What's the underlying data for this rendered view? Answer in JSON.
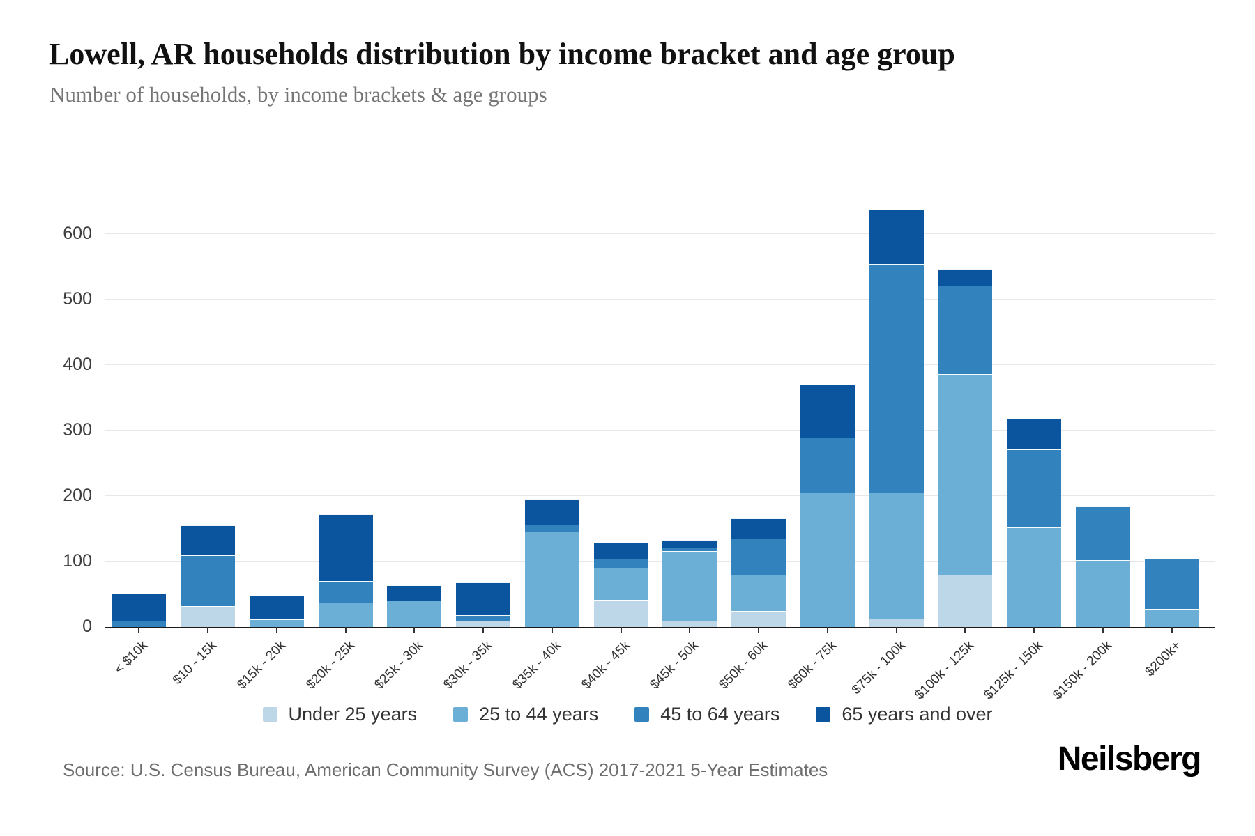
{
  "header": {
    "title": "Lowell, AR households distribution by income bracket and age group",
    "subtitle": "Number of households, by income brackets & age groups"
  },
  "footer": {
    "source": "Source: U.S. Census Bureau, American Community Survey (ACS) 2017-2021 5-Year Estimates",
    "brand": "Neilsberg"
  },
  "chart_data": {
    "type": "bar",
    "stacked": true,
    "title": "Lowell, AR households distribution by income bracket and age group",
    "subtitle": "Number of households, by income brackets & age groups",
    "xlabel": "",
    "ylabel": "",
    "ylim": [
      0,
      660
    ],
    "yticks": [
      0,
      100,
      200,
      300,
      400,
      500,
      600
    ],
    "grid": true,
    "legend_position": "bottom",
    "categories": [
      "< $10k",
      "$10 - 15k",
      "$15k - 20k",
      "$20k - 25k",
      "$25k - 30k",
      "$30k - 35k",
      "$35k - 40k",
      "$40k - 45k",
      "$45k - 50k",
      "$50k - 60k",
      "$60k - 75k",
      "$75k - 100k",
      "$100k - 125k",
      "$125k - 150k",
      "$150k - 200k",
      "$200k+"
    ],
    "series": [
      {
        "name": "Under 25 years",
        "color": "#bdd7e9",
        "values": [
          0,
          32,
          0,
          0,
          0,
          10,
          0,
          42,
          10,
          24,
          0,
          13,
          80,
          0,
          0,
          0
        ]
      },
      {
        "name": "25 to 44 years",
        "color": "#6baed6",
        "values": [
          0,
          0,
          12,
          37,
          41,
          0,
          146,
          48,
          106,
          56,
          205,
          192,
          306,
          152,
          102,
          28
        ]
      },
      {
        "name": "45 to 64 years",
        "color": "#3182bd",
        "values": [
          10,
          78,
          0,
          33,
          0,
          8,
          11,
          14,
          5,
          55,
          85,
          350,
          136,
          120,
          82,
          76
        ]
      },
      {
        "name": "65 years and over",
        "color": "#0b559f",
        "values": [
          41,
          45,
          36,
          102,
          23,
          50,
          39,
          25,
          12,
          31,
          80,
          83,
          25,
          46,
          0,
          0
        ]
      }
    ],
    "totals": [
      51,
      155,
      48,
      172,
      64,
      68,
      196,
      129,
      133,
      166,
      370,
      638,
      547,
      318,
      184,
      104
    ]
  }
}
